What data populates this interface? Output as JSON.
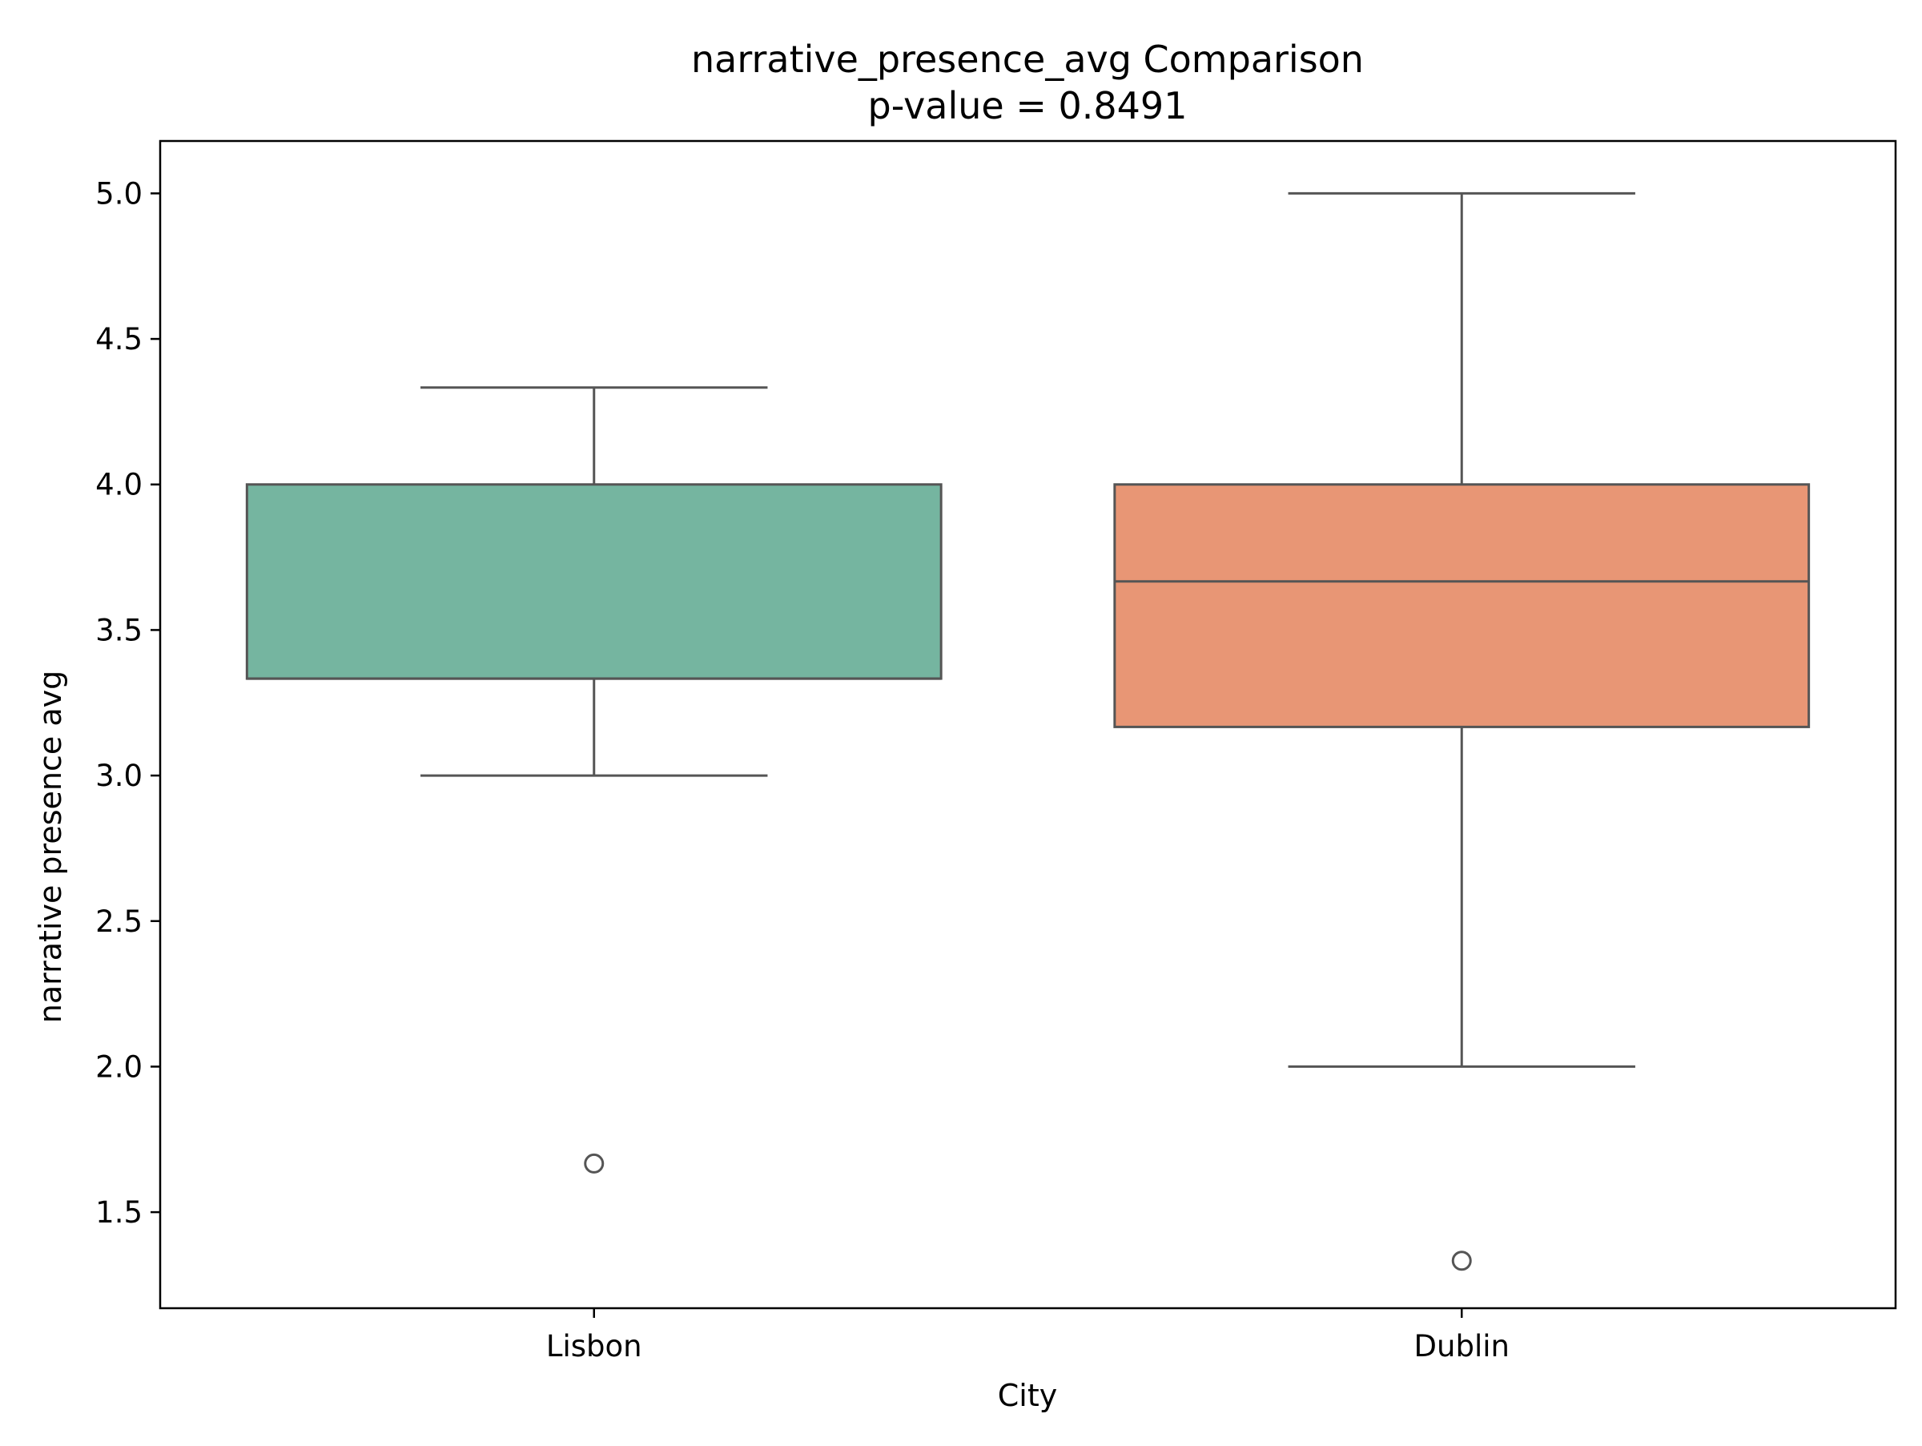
{
  "chart_data": {
    "type": "box",
    "title": "narrative_presence_avg Comparison",
    "subtitle": "p-value = 0.8491",
    "xlabel": "City",
    "ylabel": "narrative presence avg",
    "ylim": [
      1.17,
      5.18
    ],
    "yticks": [
      1.5,
      2.0,
      2.5,
      3.0,
      3.5,
      4.0,
      4.5,
      5.0
    ],
    "ytick_labels": [
      "1.5",
      "2.0",
      "2.5",
      "3.0",
      "3.5",
      "4.0",
      "4.5",
      "5.0"
    ],
    "grid": false,
    "legend": "none",
    "categories": [
      "Lisbon",
      "Dublin"
    ],
    "boxes": [
      {
        "category": "Lisbon",
        "whisker_low": 3.0,
        "q1": 3.333,
        "median": 3.333,
        "q3": 4.0,
        "whisker_high": 4.333,
        "outliers": [
          1.667
        ],
        "color": "#75b5a0"
      },
      {
        "category": "Dublin",
        "whisker_low": 2.0,
        "q1": 3.167,
        "median": 3.667,
        "q3": 4.0,
        "whisker_high": 5.0,
        "outliers": [
          1.333
        ],
        "color": "#e89675"
      }
    ],
    "line_color": "#555555"
  }
}
